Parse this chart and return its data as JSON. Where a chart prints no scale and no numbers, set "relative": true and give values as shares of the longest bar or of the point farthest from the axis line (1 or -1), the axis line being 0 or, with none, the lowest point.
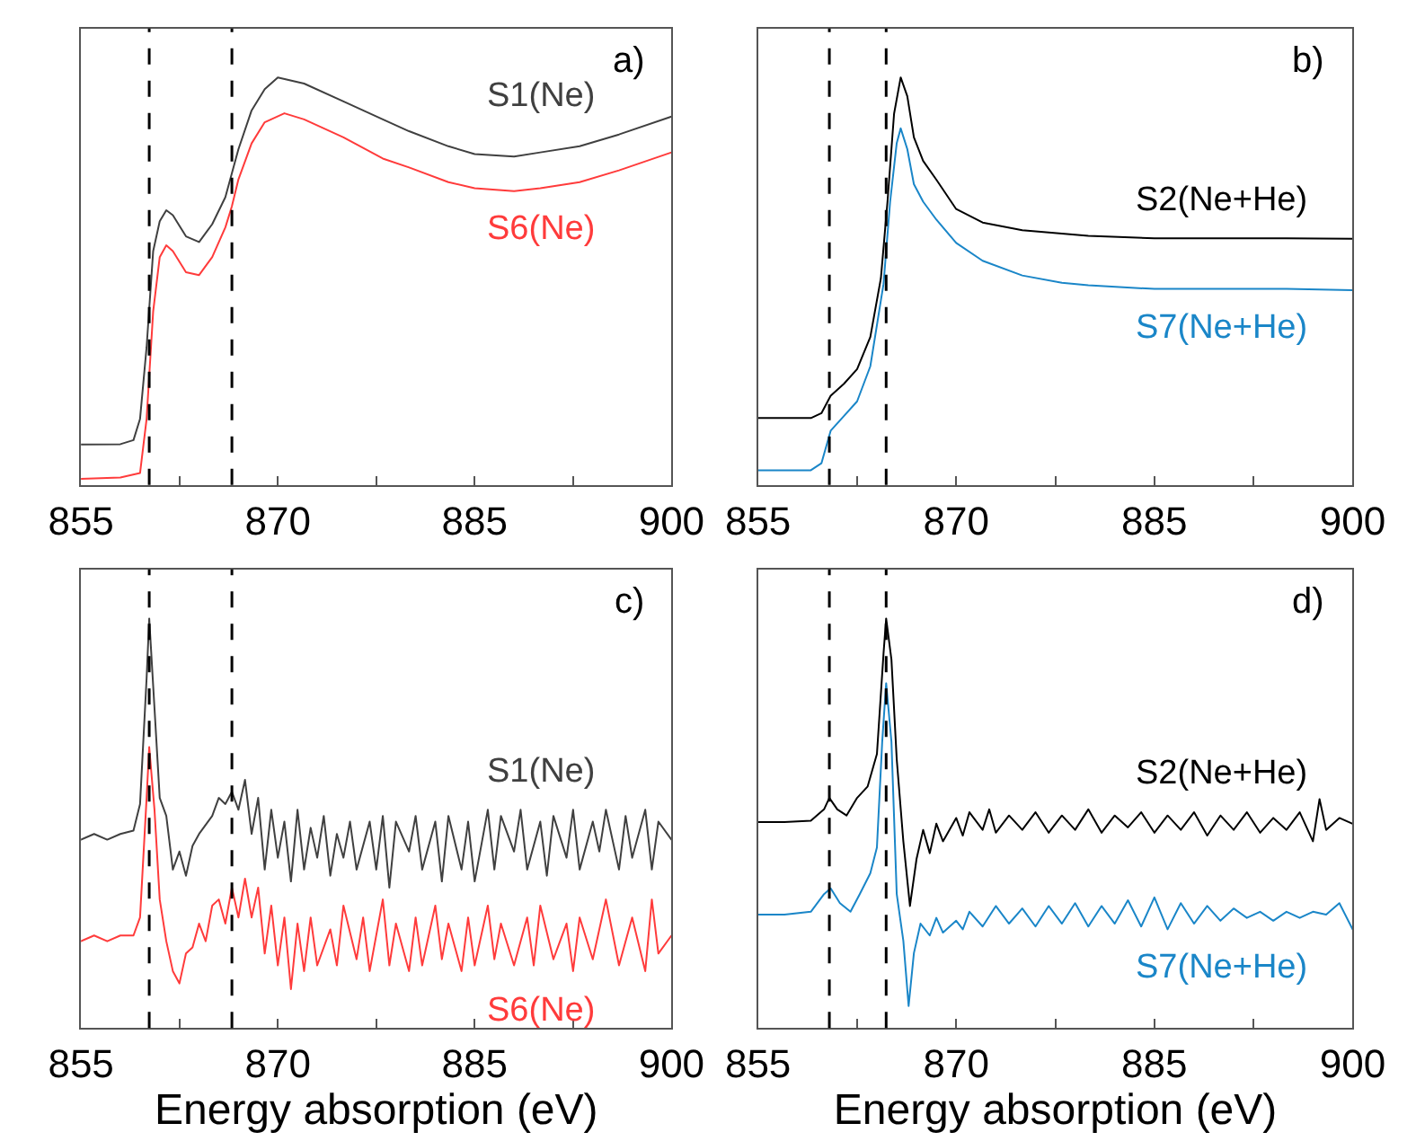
{
  "chart_data": [
    {
      "type": "line",
      "relative": true,
      "annotations": [
        "a)"
      ],
      "xlim": [
        855,
        900
      ],
      "xticks": [
        855,
        {
          "value": 862.5,
          "label": null
        },
        870,
        {
          "value": 877.5,
          "label": null
        },
        885,
        {
          "value": 892.5,
          "label": null
        },
        900
      ],
      "tick_labels": "x",
      "ref_lines": [
        {
          "axis": "x",
          "value": 860.2,
          "color": "#000000",
          "line_style": "dashed"
        },
        {
          "axis": "x",
          "value": 866.5,
          "color": "#000000",
          "line_style": "dashed"
        }
      ],
      "series": [
        {
          "name": "S1(Ne)",
          "color": "#404040",
          "x": [
            855,
            858,
            859,
            859.5,
            860,
            860.5,
            861,
            861.5,
            862,
            863,
            864,
            865,
            866,
            866.5,
            867,
            868,
            869,
            870,
            872,
            875,
            878,
            880,
            883,
            885,
            888,
            890,
            893,
            896,
            900
          ],
          "values": [
            0.099,
            0.1,
            0.11,
            0.162,
            0.338,
            0.574,
            0.647,
            0.674,
            0.662,
            0.61,
            0.596,
            0.64,
            0.706,
            0.765,
            0.824,
            0.919,
            0.971,
            1.0,
            0.985,
            0.941,
            0.897,
            0.868,
            0.831,
            0.812,
            0.806,
            0.816,
            0.831,
            0.86,
            0.904
          ]
        },
        {
          "name": "S6(Ne)",
          "color": "#ff3b3b",
          "x": [
            855,
            858,
            859.5,
            860,
            860.5,
            861,
            861.5,
            862,
            863,
            864,
            865,
            866,
            866.5,
            867,
            868,
            869,
            870.5,
            872,
            875,
            878,
            880,
            883,
            885,
            888,
            890,
            893,
            896,
            900
          ],
          "values": [
            0.015,
            0.018,
            0.029,
            0.162,
            0.426,
            0.559,
            0.588,
            0.574,
            0.522,
            0.515,
            0.559,
            0.632,
            0.684,
            0.75,
            0.838,
            0.89,
            0.912,
            0.897,
            0.853,
            0.801,
            0.779,
            0.743,
            0.728,
            0.721,
            0.728,
            0.743,
            0.772,
            0.816
          ]
        }
      ]
    },
    {
      "type": "line",
      "relative": true,
      "annotations": [
        "b)"
      ],
      "xlim": [
        855,
        900
      ],
      "xticks": [
        855,
        {
          "value": 862.5,
          "label": null
        },
        870,
        {
          "value": 877.5,
          "label": null
        },
        885,
        {
          "value": 892.5,
          "label": null
        },
        900
      ],
      "tick_labels": "x",
      "ref_lines": [
        {
          "axis": "x",
          "value": 860.4,
          "color": "#000000",
          "line_style": "dashed"
        },
        {
          "axis": "x",
          "value": 864.7,
          "color": "#000000",
          "line_style": "dashed"
        }
      ],
      "series": [
        {
          "name": "S2(Ne+He)",
          "color": "#000000",
          "x": [
            855,
            859,
            859.8,
            860.5,
            861.5,
            862.5,
            863.5,
            864.3,
            864.8,
            865.3,
            865.8,
            866.3,
            866.8,
            867.5,
            868.5,
            870,
            872,
            875,
            880,
            885,
            890,
            895,
            900
          ],
          "values": [
            0.164,
            0.164,
            0.176,
            0.219,
            0.248,
            0.284,
            0.363,
            0.507,
            0.695,
            0.911,
            1.0,
            0.954,
            0.853,
            0.795,
            0.749,
            0.677,
            0.644,
            0.625,
            0.611,
            0.605,
            0.605,
            0.605,
            0.604
          ]
        },
        {
          "name": "S7(Ne+He)",
          "color": "#1a86c8",
          "x": [
            855,
            859,
            859.8,
            860.5,
            861.5,
            862.5,
            863.5,
            864.5,
            865,
            865.5,
            865.8,
            866.3,
            866.8,
            867.5,
            868.5,
            870,
            872,
            875,
            878,
            880,
            885,
            890,
            895,
            900
          ],
          "values": [
            0.036,
            0.036,
            0.053,
            0.133,
            0.169,
            0.205,
            0.291,
            0.493,
            0.695,
            0.839,
            0.875,
            0.824,
            0.738,
            0.695,
            0.651,
            0.594,
            0.55,
            0.514,
            0.496,
            0.49,
            0.481,
            0.481,
            0.481,
            0.478
          ]
        }
      ]
    },
    {
      "type": "line",
      "relative": true,
      "annotations": [
        "c)"
      ],
      "xlabel": "Energy absorption (eV)",
      "xlim": [
        855,
        900
      ],
      "xticks": [
        855,
        {
          "value": 862.5,
          "label": null
        },
        870,
        {
          "value": 877.5,
          "label": null
        },
        885,
        {
          "value": 892.5,
          "label": null
        },
        900
      ],
      "tick_labels": "x",
      "ref_lines": [
        {
          "axis": "x",
          "value": 860.2,
          "color": "#000000",
          "line_style": "dashed"
        },
        {
          "axis": "x",
          "value": 866.5,
          "color": "#000000",
          "line_style": "dashed"
        }
      ],
      "series": [
        {
          "name": "S1(Ne)",
          "color": "#404040",
          "x": [
            855,
            856,
            857,
            858,
            859,
            859.5,
            860,
            860.2,
            860.6,
            861,
            861.5,
            862,
            862.5,
            863,
            863.5,
            864,
            865,
            865.5,
            866,
            866.5,
            867,
            867.5,
            868,
            868.5,
            869,
            869.5,
            870,
            870.5,
            871,
            871.5,
            872,
            872.5,
            873,
            873.5,
            874,
            874.5,
            875,
            875.5,
            876,
            877,
            877.5,
            878,
            878.5,
            879,
            880,
            880.5,
            881,
            882,
            882.5,
            883,
            884,
            884.5,
            885,
            886,
            886.5,
            887,
            888,
            888.5,
            889,
            890,
            890.5,
            891,
            892,
            892.5,
            893,
            894,
            894.5,
            895,
            896,
            896.5,
            897,
            898,
            898.5,
            899,
            900
          ],
          "values": [
            0.46,
            0.474,
            0.46,
            0.474,
            0.482,
            0.547,
            0.854,
            1.0,
            0.781,
            0.562,
            0.518,
            0.387,
            0.431,
            0.372,
            0.445,
            0.474,
            0.518,
            0.562,
            0.547,
            0.577,
            0.533,
            0.606,
            0.474,
            0.562,
            0.387,
            0.533,
            0.416,
            0.504,
            0.358,
            0.533,
            0.387,
            0.489,
            0.416,
            0.518,
            0.372,
            0.474,
            0.416,
            0.504,
            0.387,
            0.504,
            0.387,
            0.518,
            0.343,
            0.504,
            0.431,
            0.518,
            0.387,
            0.504,
            0.358,
            0.518,
            0.387,
            0.504,
            0.358,
            0.533,
            0.387,
            0.518,
            0.431,
            0.533,
            0.387,
            0.504,
            0.372,
            0.518,
            0.416,
            0.533,
            0.387,
            0.504,
            0.431,
            0.533,
            0.387,
            0.518,
            0.416,
            0.533,
            0.387,
            0.504,
            0.46
          ]
        },
        {
          "name": "S6(Ne)",
          "color": "#ff3b3b",
          "x": [
            855,
            856,
            857,
            858,
            859,
            859.5,
            860,
            860.2,
            860.6,
            861,
            861.5,
            862,
            862.5,
            863,
            863.5,
            864,
            864.5,
            865,
            865.5,
            866,
            866.5,
            867,
            867.5,
            868,
            868.5,
            869,
            869.5,
            870,
            870.5,
            871,
            871.5,
            872,
            872.5,
            873,
            874,
            874.5,
            875,
            876,
            876.5,
            877,
            878,
            878.5,
            879,
            880,
            880.5,
            881,
            882,
            882.5,
            883,
            884,
            884.5,
            885,
            886,
            886.5,
            887,
            888,
            889,
            889.5,
            890,
            891,
            892,
            892.5,
            893,
            894,
            895,
            896,
            897,
            898,
            898.5,
            899,
            900
          ],
          "values": [
            0.212,
            0.226,
            0.212,
            0.226,
            0.226,
            0.27,
            0.562,
            0.686,
            0.533,
            0.314,
            0.212,
            0.139,
            0.109,
            0.182,
            0.197,
            0.255,
            0.212,
            0.299,
            0.314,
            0.255,
            0.343,
            0.27,
            0.365,
            0.27,
            0.343,
            0.182,
            0.299,
            0.153,
            0.27,
            0.095,
            0.255,
            0.139,
            0.27,
            0.153,
            0.241,
            0.153,
            0.299,
            0.168,
            0.27,
            0.139,
            0.314,
            0.153,
            0.255,
            0.139,
            0.27,
            0.153,
            0.299,
            0.168,
            0.255,
            0.139,
            0.27,
            0.153,
            0.299,
            0.168,
            0.255,
            0.153,
            0.27,
            0.153,
            0.299,
            0.168,
            0.255,
            0.139,
            0.27,
            0.168,
            0.314,
            0.153,
            0.27,
            0.139,
            0.314,
            0.182,
            0.226
          ]
        }
      ]
    },
    {
      "type": "line",
      "relative": true,
      "annotations": [
        "d)"
      ],
      "xlabel": "Energy absorption (eV)",
      "xlim": [
        855,
        900
      ],
      "xticks": [
        855,
        {
          "value": 862.5,
          "label": null
        },
        870,
        {
          "value": 877.5,
          "label": null
        },
        885,
        {
          "value": 892.5,
          "label": null
        },
        900
      ],
      "tick_labels": "x",
      "ref_lines": [
        {
          "axis": "x",
          "value": 860.4,
          "color": "#000000",
          "line_style": "dashed"
        },
        {
          "axis": "x",
          "value": 864.7,
          "color": "#000000",
          "line_style": "dashed"
        }
      ],
      "series": [
        {
          "name": "S2(Ne+He)",
          "color": "#000000",
          "x": [
            855,
            857,
            859,
            860,
            860.4,
            861,
            861.7,
            862.5,
            863.3,
            864,
            864.5,
            864.7,
            865.1,
            865.5,
            866,
            866.5,
            867,
            867.5,
            868,
            868.5,
            869,
            870,
            870.5,
            871,
            872,
            872.5,
            873,
            874,
            875,
            876,
            877,
            878,
            879,
            880,
            881,
            882,
            883,
            884,
            885,
            886,
            887,
            888,
            889,
            890,
            891,
            892,
            893,
            894,
            895,
            896,
            897,
            897.5,
            898,
            899,
            900
          ],
          "values": [
            0.503,
            0.503,
            0.506,
            0.534,
            0.562,
            0.534,
            0.519,
            0.562,
            0.59,
            0.669,
            0.914,
            1.0,
            0.9,
            0.656,
            0.456,
            0.298,
            0.413,
            0.484,
            0.427,
            0.499,
            0.456,
            0.513,
            0.47,
            0.527,
            0.484,
            0.534,
            0.477,
            0.519,
            0.484,
            0.527,
            0.477,
            0.519,
            0.484,
            0.534,
            0.477,
            0.519,
            0.49,
            0.527,
            0.477,
            0.519,
            0.484,
            0.527,
            0.47,
            0.519,
            0.484,
            0.527,
            0.477,
            0.513,
            0.484,
            0.527,
            0.456,
            0.559,
            0.484,
            0.513,
            0.499
          ]
        },
        {
          "name": "S7(Ne+He)",
          "color": "#1a86c8",
          "x": [
            855,
            857,
            859,
            860,
            860.5,
            861.2,
            862,
            862.7,
            863.5,
            864,
            864.4,
            864.7,
            865.1,
            865.5,
            866,
            866.4,
            866.8,
            867.3,
            868,
            868.5,
            869,
            870,
            870.5,
            871,
            872,
            873,
            874,
            875,
            876,
            877,
            878,
            879,
            880,
            881,
            882,
            883,
            884,
            885,
            886,
            887,
            888,
            889,
            890,
            891,
            892,
            893,
            894,
            895,
            896,
            897,
            898,
            899,
            900
          ],
          "values": [
            0.277,
            0.277,
            0.284,
            0.327,
            0.341,
            0.305,
            0.284,
            0.327,
            0.378,
            0.441,
            0.699,
            0.842,
            0.699,
            0.327,
            0.213,
            0.054,
            0.183,
            0.255,
            0.226,
            0.269,
            0.233,
            0.262,
            0.241,
            0.284,
            0.248,
            0.298,
            0.255,
            0.292,
            0.248,
            0.298,
            0.255,
            0.305,
            0.248,
            0.298,
            0.255,
            0.312,
            0.248,
            0.319,
            0.241,
            0.305,
            0.255,
            0.298,
            0.262,
            0.292,
            0.269,
            0.284,
            0.262,
            0.284,
            0.269,
            0.284,
            0.277,
            0.305,
            0.241
          ]
        }
      ]
    }
  ]
}
